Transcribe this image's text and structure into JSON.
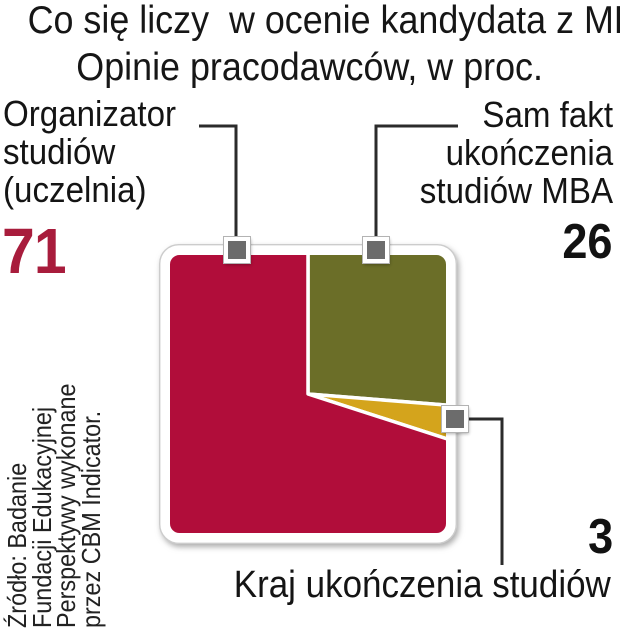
{
  "header": {
    "title": "Co się liczy  w ocenie kandydata z MBA",
    "subtitle": "Opinie pracodawców, w proc."
  },
  "chart_data": {
    "type": "pie",
    "variant": "square-pie",
    "unit": "percent",
    "title": "Co się liczy w ocenie kandydata z MBA",
    "subtitle": "Opinie pracodawców, w proc.",
    "categories": [
      "Organizator studiów (uczelnia)",
      "Sam fakt ukończenia studiów MBA",
      "Kraj ukończenia studiów"
    ],
    "values": [
      71,
      26,
      3
    ],
    "colors": [
      "#b10d3a",
      "#6b6e28",
      "#d4a41c"
    ],
    "segment_order_clockwise_from_top": [
      1,
      2,
      0
    ],
    "legend_position": "callout-labels",
    "grid": "off"
  },
  "callouts": {
    "organizator": {
      "line1": "Organizator",
      "line2": "studiów",
      "line3": "(uczelnia)",
      "value": "71"
    },
    "sam_fakt": {
      "line1": "Sam fakt",
      "line2": "ukończenia",
      "line3": "studiów MBA",
      "value": "26"
    },
    "kraj": {
      "label": "Kraj ukończenia studiów",
      "value": "3"
    }
  },
  "source": {
    "line1": "Źródło: Badanie",
    "line2": "Fundacji Edukacyjnej",
    "line3": "Perspektywy wykonane",
    "line4": "przez CBM Indicator."
  },
  "colors": {
    "segment_red": "#b10d3a",
    "segment_olive": "#6b6e28",
    "segment_gold": "#d4a41c",
    "accent_value_red": "#a81c3c",
    "text": "#1b1b1b",
    "connector": "#2b2b2b",
    "marker_gray": "#6c6c6c",
    "frame_white": "#ffffff"
  }
}
